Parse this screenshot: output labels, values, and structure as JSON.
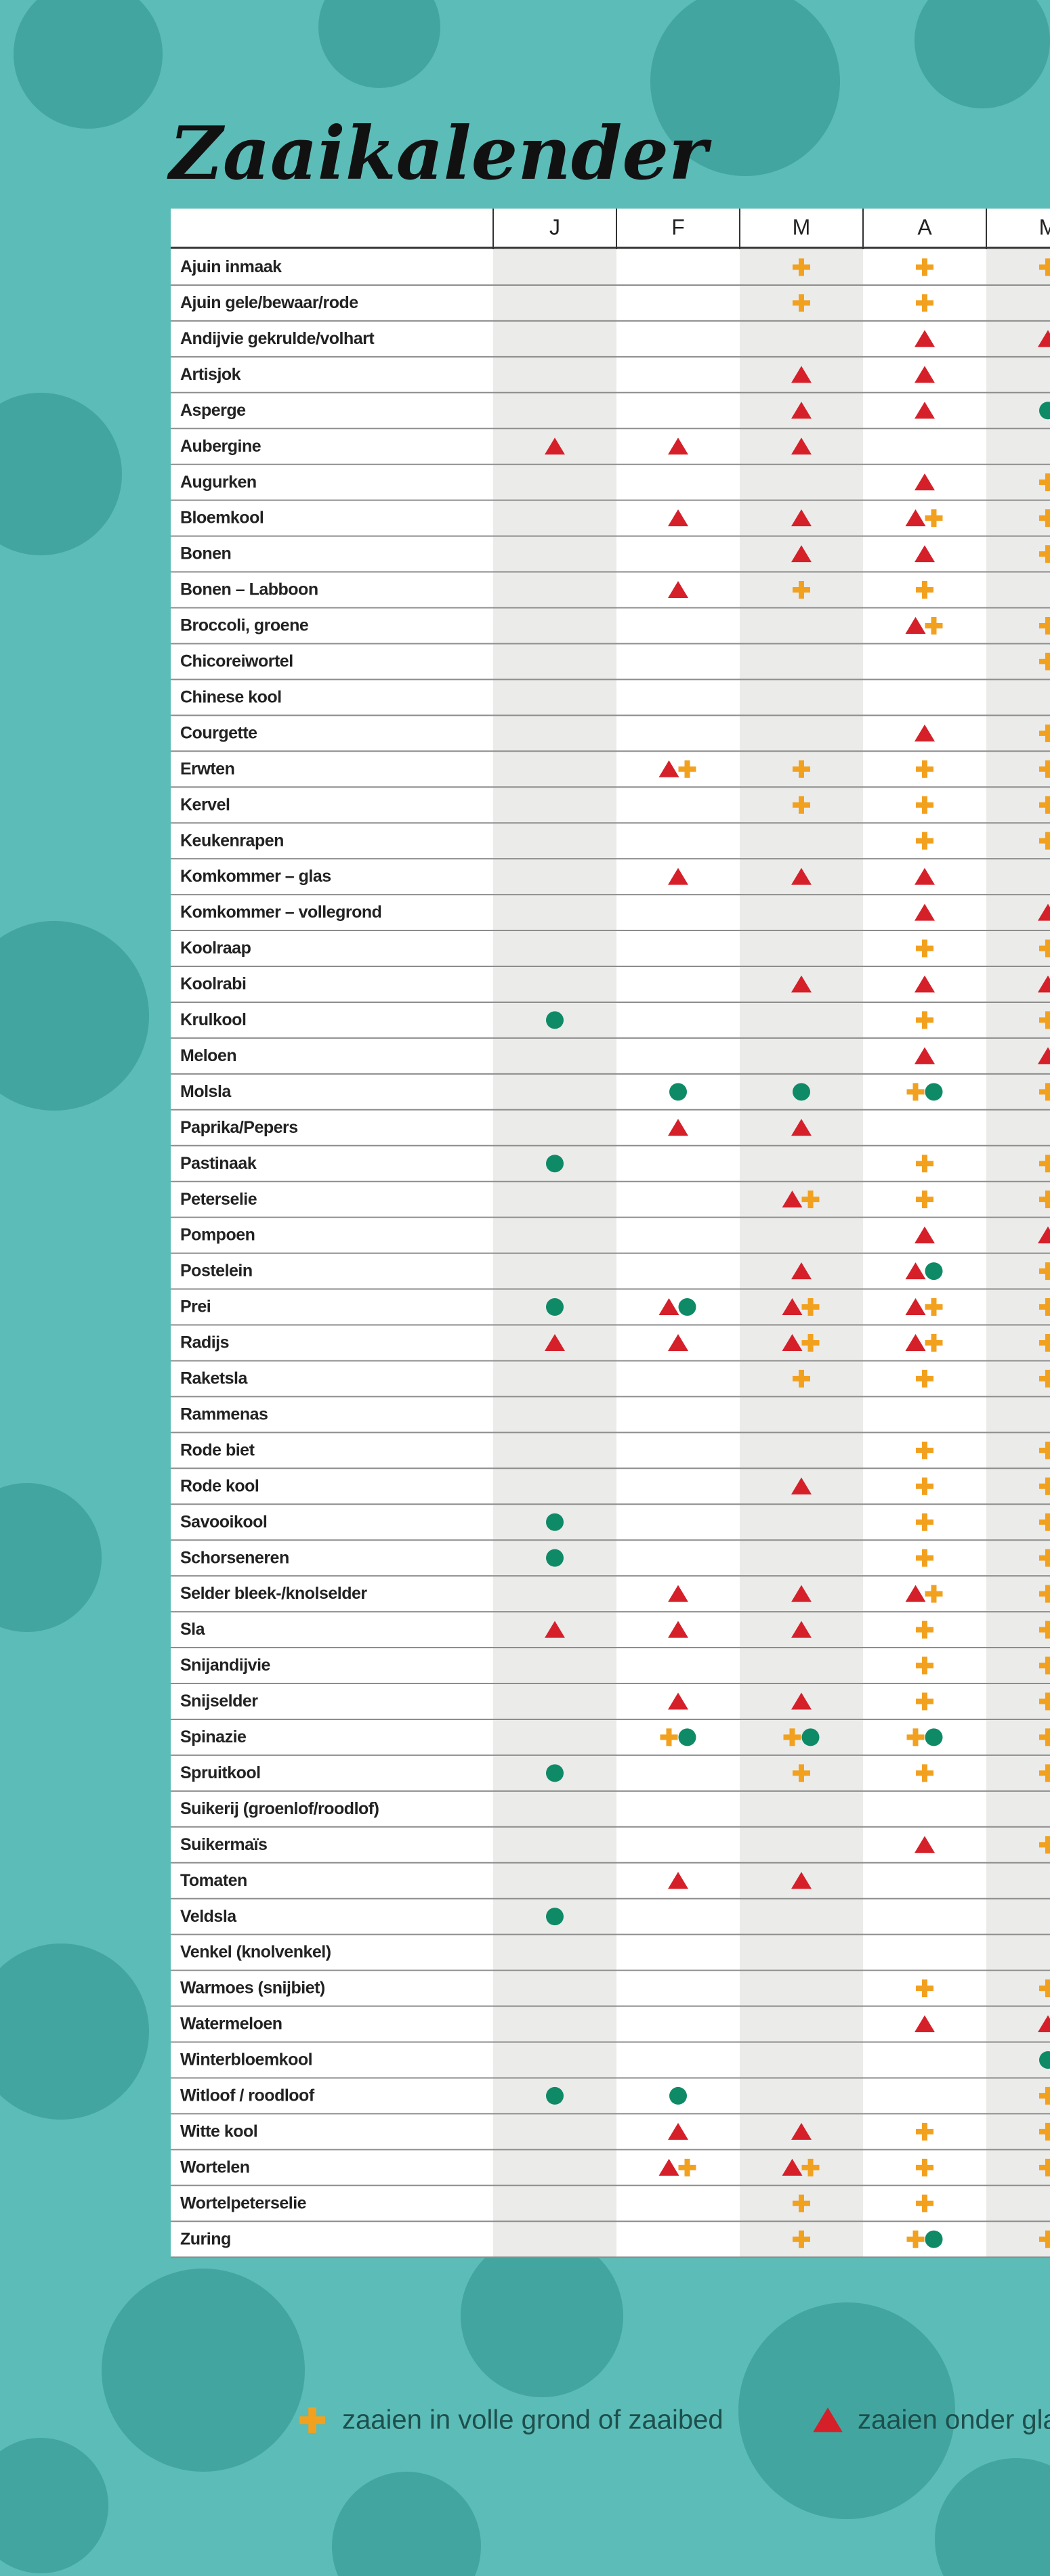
{
  "header": {
    "title": "Zaaikalender"
  },
  "table": {
    "columns": [
      "J",
      "F",
      "M",
      "A",
      "M"
    ],
    "rows": [
      [
        "Ajuin inmaak",
        [],
        [],
        [
          "plus"
        ],
        [
          "plus"
        ],
        [
          "plus"
        ]
      ],
      [
        "Ajuin gele/bewaar/rode",
        [],
        [],
        [
          "plus"
        ],
        [
          "plus"
        ],
        []
      ],
      [
        "Andijvie gekrulde/volhart",
        [],
        [],
        [],
        [
          "triangle"
        ],
        [
          "triangle"
        ]
      ],
      [
        "Artisjok",
        [],
        [],
        [
          "triangle"
        ],
        [
          "triangle"
        ],
        []
      ],
      [
        "Asperge",
        [],
        [],
        [
          "triangle"
        ],
        [
          "triangle"
        ],
        [
          "circle"
        ]
      ],
      [
        "Aubergine",
        [
          "triangle"
        ],
        [
          "triangle"
        ],
        [
          "triangle"
        ],
        [],
        []
      ],
      [
        "Augurken",
        [],
        [],
        [],
        [
          "triangle"
        ],
        [
          "plus"
        ]
      ],
      [
        "Bloemkool",
        [],
        [
          "triangle"
        ],
        [
          "triangle"
        ],
        [
          "triangle",
          "plus"
        ],
        [
          "plus"
        ]
      ],
      [
        "Bonen",
        [],
        [],
        [
          "triangle"
        ],
        [
          "triangle"
        ],
        [
          "plus"
        ]
      ],
      [
        "Bonen – Labboon",
        [],
        [
          "triangle"
        ],
        [
          "plus"
        ],
        [
          "plus"
        ],
        []
      ],
      [
        "Broccoli, groene",
        [],
        [],
        [],
        [
          "triangle",
          "plus"
        ],
        [
          "plus"
        ]
      ],
      [
        "Chicoreiwortel",
        [],
        [],
        [],
        [],
        [
          "plus"
        ]
      ],
      [
        "Chinese kool",
        [],
        [],
        [],
        [],
        []
      ],
      [
        "Courgette",
        [],
        [],
        [],
        [
          "triangle"
        ],
        [
          "plus"
        ]
      ],
      [
        "Erwten",
        [],
        [
          "triangle",
          "plus"
        ],
        [
          "plus"
        ],
        [
          "plus"
        ],
        [
          "plus"
        ]
      ],
      [
        "Kervel",
        [],
        [],
        [
          "plus"
        ],
        [
          "plus"
        ],
        [
          "plus"
        ]
      ],
      [
        "Keukenrapen",
        [],
        [],
        [],
        [
          "plus"
        ],
        [
          "plus"
        ]
      ],
      [
        "Komkommer – glas",
        [],
        [
          "triangle"
        ],
        [
          "triangle"
        ],
        [
          "triangle"
        ],
        []
      ],
      [
        "Komkommer – vollegrond",
        [],
        [],
        [],
        [
          "triangle"
        ],
        [
          "triangle"
        ]
      ],
      [
        "Koolraap",
        [],
        [],
        [],
        [
          "plus"
        ],
        [
          "plus"
        ]
      ],
      [
        "Koolrabi",
        [],
        [],
        [
          "triangle"
        ],
        [
          "triangle"
        ],
        [
          "triangle"
        ]
      ],
      [
        "Krulkool",
        [
          "circle"
        ],
        [],
        [],
        [
          "plus"
        ],
        [
          "plus"
        ]
      ],
      [
        "Meloen",
        [],
        [],
        [],
        [
          "triangle"
        ],
        [
          "triangle"
        ]
      ],
      [
        "Molsla",
        [],
        [
          "circle"
        ],
        [
          "circle"
        ],
        [
          "plus",
          "circle"
        ],
        [
          "plus"
        ]
      ],
      [
        "Paprika/Pepers",
        [],
        [
          "triangle"
        ],
        [
          "triangle"
        ],
        [],
        []
      ],
      [
        "Pastinaak",
        [
          "circle"
        ],
        [],
        [],
        [
          "plus"
        ],
        [
          "plus"
        ]
      ],
      [
        "Peterselie",
        [],
        [],
        [
          "triangle",
          "plus"
        ],
        [
          "plus"
        ],
        [
          "plus"
        ]
      ],
      [
        "Pompoen",
        [],
        [],
        [],
        [
          "triangle"
        ],
        [
          "triangle"
        ]
      ],
      [
        "Postelein",
        [],
        [],
        [
          "triangle"
        ],
        [
          "triangle",
          "circle"
        ],
        [
          "plus"
        ]
      ],
      [
        "Prei",
        [
          "circle"
        ],
        [
          "triangle",
          "circle"
        ],
        [
          "triangle",
          "plus"
        ],
        [
          "triangle",
          "plus"
        ],
        [
          "plus"
        ]
      ],
      [
        "Radijs",
        [
          "triangle"
        ],
        [
          "triangle"
        ],
        [
          "triangle",
          "plus"
        ],
        [
          "triangle",
          "plus"
        ],
        [
          "plus"
        ]
      ],
      [
        "Raketsla",
        [],
        [],
        [
          "plus"
        ],
        [
          "plus"
        ],
        [
          "plus"
        ]
      ],
      [
        "Rammenas",
        [],
        [],
        [],
        [],
        []
      ],
      [
        "Rode biet",
        [],
        [],
        [],
        [
          "plus"
        ],
        [
          "plus"
        ]
      ],
      [
        "Rode kool",
        [],
        [],
        [
          "triangle"
        ],
        [
          "plus"
        ],
        [
          "plus"
        ]
      ],
      [
        "Savooikool",
        [
          "circle"
        ],
        [],
        [],
        [
          "plus"
        ],
        [
          "plus"
        ]
      ],
      [
        "Schorseneren",
        [
          "circle"
        ],
        [],
        [],
        [
          "plus"
        ],
        [
          "plus"
        ]
      ],
      [
        "Selder bleek-/knolselder",
        [],
        [
          "triangle"
        ],
        [
          "triangle"
        ],
        [
          "triangle",
          "plus"
        ],
        [
          "plus"
        ]
      ],
      [
        "Sla",
        [
          "triangle"
        ],
        [
          "triangle"
        ],
        [
          "triangle"
        ],
        [
          "plus"
        ],
        [
          "plus"
        ]
      ],
      [
        "Snijandijvie",
        [],
        [],
        [],
        [
          "plus"
        ],
        [
          "plus"
        ]
      ],
      [
        "Snijselder",
        [],
        [
          "triangle"
        ],
        [
          "triangle"
        ],
        [
          "plus"
        ],
        [
          "plus"
        ]
      ],
      [
        "Spinazie",
        [],
        [
          "plus",
          "circle"
        ],
        [
          "plus",
          "circle"
        ],
        [
          "plus",
          "circle"
        ],
        [
          "plus"
        ]
      ],
      [
        "Spruitkool",
        [
          "circle"
        ],
        [],
        [
          "plus"
        ],
        [
          "plus"
        ],
        [
          "plus"
        ]
      ],
      [
        "Suikerij (groenlof/roodlof)",
        [],
        [],
        [],
        [],
        []
      ],
      [
        "Suikermaïs",
        [],
        [],
        [],
        [
          "triangle"
        ],
        [
          "plus"
        ]
      ],
      [
        "Tomaten",
        [],
        [
          "triangle"
        ],
        [
          "triangle"
        ],
        [],
        []
      ],
      [
        "Veldsla",
        [
          "circle"
        ],
        [],
        [],
        [],
        []
      ],
      [
        "Venkel (knolvenkel)",
        [],
        [],
        [],
        [],
        []
      ],
      [
        "Warmoes (snijbiet)",
        [],
        [],
        [],
        [
          "plus"
        ],
        [
          "plus"
        ]
      ],
      [
        "Watermeloen",
        [],
        [],
        [],
        [
          "triangle"
        ],
        [
          "triangle"
        ]
      ],
      [
        "Winterbloemkool",
        [],
        [],
        [],
        [],
        [
          "circle"
        ]
      ],
      [
        "Witloof / roodloof",
        [
          "circle"
        ],
        [
          "circle"
        ],
        [],
        [],
        [
          "plus"
        ]
      ],
      [
        "Witte kool",
        [],
        [
          "triangle"
        ],
        [
          "triangle"
        ],
        [
          "plus"
        ],
        [
          "plus"
        ]
      ],
      [
        "Wortelen",
        [],
        [
          "triangle",
          "plus"
        ],
        [
          "triangle",
          "plus"
        ],
        [
          "plus"
        ],
        [
          "plus"
        ]
      ],
      [
        "Wortelpeterselie",
        [],
        [],
        [
          "plus"
        ],
        [
          "plus"
        ],
        []
      ],
      [
        "Zuring",
        [],
        [],
        [
          "plus"
        ],
        [
          "plus",
          "circle"
        ],
        [
          "plus"
        ]
      ]
    ]
  },
  "legend": [
    {
      "symbol": "plus",
      "label": "zaaien in volle grond of zaaibed"
    },
    {
      "symbol": "triangle",
      "label": "zaaien onder glas"
    }
  ]
}
